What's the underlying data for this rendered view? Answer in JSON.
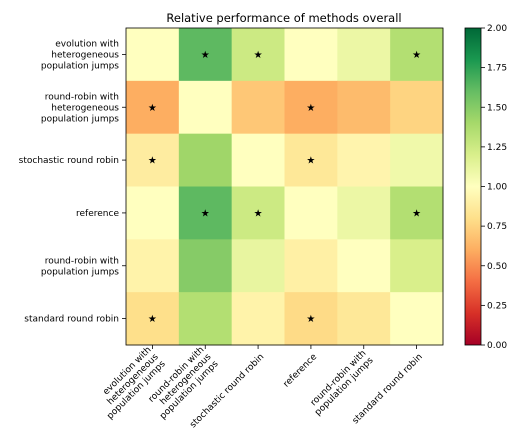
{
  "chart_data": {
    "type": "heatmap",
    "title": "Relative performance of methods overall",
    "rows": [
      "evolution with\nheterogeneous\npopulation jumps",
      "round-robin with\nheterogeneous\npopulation jumps",
      "stochastic round robin",
      "reference",
      "round-robin with\npopulation jumps",
      "standard round robin"
    ],
    "columns": [
      "evolution with\nheterogeneous\npopulation jumps",
      "round-robin with\nheterogeneous\npopulation jumps",
      "stochastic round robin",
      "reference",
      "round-robin with\npopulation jumps",
      "standard round robin"
    ],
    "values": [
      [
        1.0,
        1.62,
        1.25,
        1.0,
        1.1,
        1.35
      ],
      [
        0.6,
        1.0,
        0.7,
        0.6,
        0.65,
        0.75
      ],
      [
        0.88,
        1.42,
        1.0,
        0.85,
        0.93,
        1.08
      ],
      [
        1.0,
        1.62,
        1.25,
        1.0,
        1.1,
        1.35
      ],
      [
        0.92,
        1.5,
        1.12,
        0.9,
        1.0,
        1.2
      ],
      [
        0.8,
        1.35,
        0.92,
        0.78,
        0.85,
        1.0
      ]
    ],
    "stars": [
      [
        false,
        true,
        true,
        false,
        false,
        true
      ],
      [
        true,
        false,
        false,
        true,
        false,
        false
      ],
      [
        true,
        false,
        false,
        true,
        false,
        false
      ],
      [
        false,
        true,
        true,
        false,
        false,
        true
      ],
      [
        false,
        false,
        false,
        false,
        false,
        false
      ],
      [
        true,
        false,
        false,
        true,
        false,
        false
      ]
    ],
    "star_symbol": "★",
    "colormap": "RdYlGn",
    "colorbar": {
      "range": [
        0.0,
        2.0
      ],
      "ticks": [
        "0.00",
        "0.25",
        "0.50",
        "0.75",
        "1.00",
        "1.25",
        "1.50",
        "1.75",
        "2.00"
      ]
    }
  }
}
